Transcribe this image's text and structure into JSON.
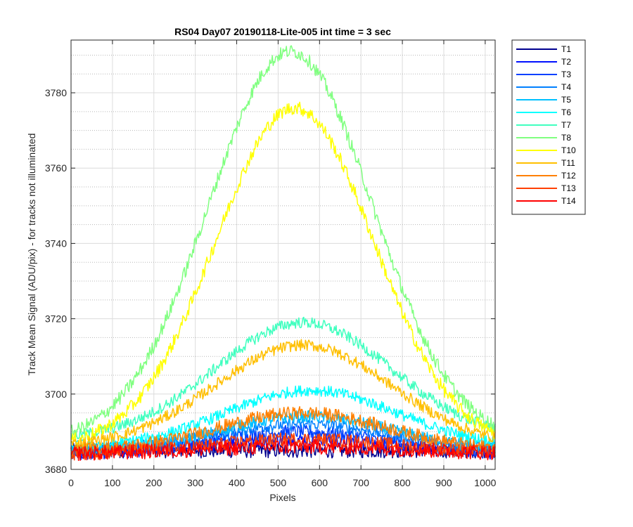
{
  "chart_data": {
    "type": "line",
    "title": "RS04 Day07 20190118-Lite-005 int time = 3 sec",
    "xlabel": "Pixels",
    "ylabel": "Track Mean Signal (ADU/pix) - for tracks not illuminated",
    "xlim": [
      0,
      1024
    ],
    "ylim": [
      3680,
      3794
    ],
    "xticks": [
      0,
      100,
      200,
      300,
      400,
      500,
      600,
      700,
      800,
      900,
      1000
    ],
    "yticks": [
      3680,
      3700,
      3720,
      3740,
      3760,
      3780
    ],
    "grid": true,
    "minor_grid_y": true,
    "legend_position": "outside-top-right",
    "series": [
      {
        "name": "T1",
        "color": "#00008f",
        "baseline": 3685,
        "peak": 3685,
        "peak_x": 550,
        "width": 400,
        "noise": 2.0
      },
      {
        "name": "T2",
        "color": "#0010ff",
        "baseline": 3684,
        "peak": 3688,
        "peak_x": 550,
        "width": 330,
        "noise": 1.8
      },
      {
        "name": "T3",
        "color": "#0040ff",
        "baseline": 3684,
        "peak": 3690,
        "peak_x": 550,
        "width": 310,
        "noise": 1.8
      },
      {
        "name": "T4",
        "color": "#0080ff",
        "baseline": 3685,
        "peak": 3692,
        "peak_x": 560,
        "width": 300,
        "noise": 1.6
      },
      {
        "name": "T5",
        "color": "#00c0ff",
        "baseline": 3685,
        "peak": 3694,
        "peak_x": 570,
        "width": 290,
        "noise": 1.6
      },
      {
        "name": "T6",
        "color": "#00ffff",
        "baseline": 3686,
        "peak": 3701,
        "peak_x": 580,
        "width": 290,
        "noise": 1.5
      },
      {
        "name": "T7",
        "color": "#40ffbf",
        "baseline": 3688,
        "peak": 3719,
        "peak_x": 560,
        "width": 300,
        "noise": 1.5
      },
      {
        "name": "T8",
        "color": "#80ff80",
        "baseline": 3687,
        "peak": 3791,
        "peak_x": 530,
        "width": 280,
        "noise": 1.8
      },
      {
        "name": "T10",
        "color": "#ffff00",
        "baseline": 3686,
        "peak": 3776,
        "peak_x": 540,
        "width": 270,
        "noise": 1.8
      },
      {
        "name": "T11",
        "color": "#ffbf00",
        "baseline": 3686,
        "peak": 3713,
        "peak_x": 560,
        "width": 300,
        "noise": 1.5
      },
      {
        "name": "T12",
        "color": "#ff8000",
        "baseline": 3685,
        "peak": 3695,
        "peak_x": 560,
        "width": 290,
        "noise": 1.8
      },
      {
        "name": "T13",
        "color": "#ff4000",
        "baseline": 3684,
        "peak": 3688,
        "peak_x": 560,
        "width": 330,
        "noise": 1.8
      },
      {
        "name": "T14",
        "color": "#ff0000",
        "baseline": 3684,
        "peak": 3686,
        "peak_x": 560,
        "width": 380,
        "noise": 2.0
      }
    ]
  }
}
